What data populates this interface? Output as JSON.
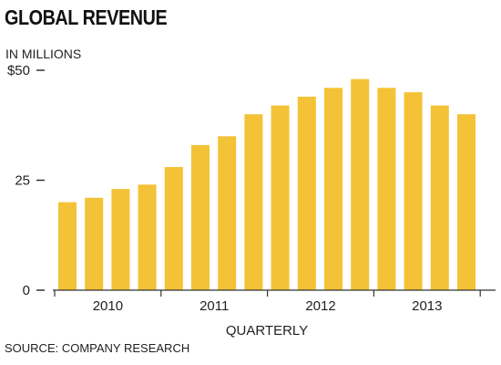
{
  "chart_data": {
    "type": "bar",
    "title": "GLOBAL REVENUE",
    "unit_label": "IN MILLIONS",
    "xlabel": "QUARTERLY",
    "ylabel": "",
    "source": "SOURCE: COMPANY RESEARCH",
    "ylim": [
      0,
      50
    ],
    "yticks": [
      {
        "value": 0,
        "label": "0"
      },
      {
        "value": 25,
        "label": "25"
      },
      {
        "value": 50,
        "label": "$50"
      }
    ],
    "years": [
      "2010",
      "2011",
      "2012",
      "2013"
    ],
    "categories": [
      "2010 Q1",
      "2010 Q2",
      "2010 Q3",
      "2010 Q4",
      "2011 Q1",
      "2011 Q2",
      "2011 Q3",
      "2011 Q4",
      "2012 Q1",
      "2012 Q2",
      "2012 Q3",
      "2012 Q4",
      "2013 Q1",
      "2013 Q2",
      "2013 Q3",
      "2013 Q4"
    ],
    "values": [
      20,
      21,
      23,
      24,
      28,
      33,
      35,
      40,
      42,
      44,
      46,
      48,
      46,
      45,
      42,
      40
    ],
    "bar_color": "#F4C236",
    "axis_color": "#333333",
    "grid": false,
    "legend": "none"
  }
}
